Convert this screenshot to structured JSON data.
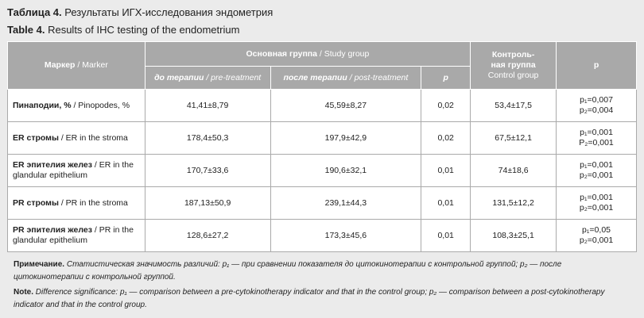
{
  "header": {
    "title_ru": {
      "label": "Таблица 4.",
      "text": "Результаты ИГХ-исследования эндометрия"
    },
    "title_en": {
      "label": "Table 4.",
      "text": "Results of IHC testing of the endometrium"
    }
  },
  "table": {
    "columns": {
      "marker": {
        "ru": "Маркер",
        "en": "/ Marker"
      },
      "study": {
        "ru": "Основная группа",
        "en": "/ Study group"
      },
      "pre": {
        "ru": "до терапии",
        "en": "/ pre-treatment"
      },
      "post": {
        "ru": "после терапии",
        "en": "/ post-treatment"
      },
      "p_study": "p",
      "control": {
        "ru": "Контроль-ная группа",
        "en": "Control group"
      },
      "p": "p"
    },
    "rows": [
      {
        "marker_ru": "Пинаподии, %",
        "marker_en": "/ Pinopodes, %",
        "pre": "41,41±8,79",
        "post": "45,59±8,27",
        "p": "0,02",
        "control": "53,4±17,5",
        "p_values": [
          "p₁=0,007",
          "p₂=0,004"
        ]
      },
      {
        "marker_ru": "ER стромы",
        "marker_en": "/ ER in the stroma",
        "pre": "178,4±50,3",
        "post": "197,9±42,9",
        "p": "0,02",
        "control": "67,5±12,1",
        "p_values": [
          "p₁=0,001",
          "P₂=0,001"
        ]
      },
      {
        "marker_ru": "ER эпителия желез",
        "marker_en": "/ ER in the glandular epithelium",
        "pre": "170,7±33,6",
        "post": "190,6±32,1",
        "p": "0,01",
        "control": "74±18,6",
        "p_values": [
          "p₁=0,001",
          "p₂=0,001"
        ]
      },
      {
        "marker_ru": "PR стромы",
        "marker_en": "/ PR in the stroma",
        "pre": "187,13±50,9",
        "post": "239,1±44,3",
        "p": "0,01",
        "control": "131,5±12,2",
        "p_values": [
          "p₁=0,001",
          "p₂=0,001"
        ]
      },
      {
        "marker_ru": "PR эпителия желез",
        "marker_en": "/ PR in the glandular epithelium",
        "pre": "128,6±27,2",
        "post": "173,3±45,6",
        "p": "0,01",
        "control": "108,3±25,1",
        "p_values": [
          "p₁=0,05",
          "p₂=0,001"
        ]
      }
    ]
  },
  "notes": {
    "ru": {
      "label": "Примечание.",
      "text": "Статистическая значимость различий: p₁ — при сравнении показателя до цитокинотерапии с контрольной группой; p₂ — после цитокинотерапии с контрольной группой."
    },
    "en": {
      "label": "Note.",
      "text": "Difference significance: p₁ — comparison between a pre-cytokinotherapy indicator and that in the control group; p₂ — comparison between a post-cytokinotherapy indicator and that in the control group."
    }
  }
}
